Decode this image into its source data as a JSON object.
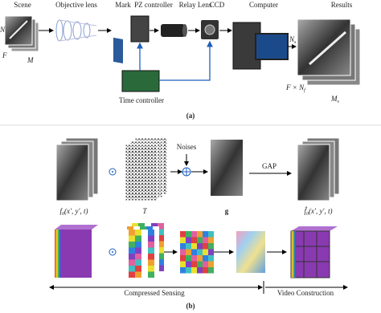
{
  "panel_a": {
    "labels": {
      "scene": "Scene",
      "objective_lens": "Objective lens",
      "mark": "Mark",
      "pz_controller": "PZ controller",
      "relay_lens": "Relay Lens",
      "ccd": "CCD",
      "computer": "Computer",
      "results": "Results",
      "time_controller": "Time controller"
    },
    "scene_axes": {
      "n": "N",
      "f": "F",
      "m": "M"
    },
    "result_axes": {
      "n": "N",
      "n_sub": "s",
      "f": "F × N",
      "f_sub": "f",
      "m": "M",
      "m_sub": "s"
    },
    "caption": "(a)"
  },
  "panel_b": {
    "noises": "Noises",
    "gap": "GAP",
    "f0": "f",
    "f0_sub": "0",
    "f0_args": "(x′, y′, t)",
    "t": "T",
    "g": "g",
    "f0_hat": "f̂",
    "f0_hat_sub": "0",
    "f0_hat_args": "(x′, y′, t)",
    "compressed_sensing": "Compressed Sensing",
    "video_construction": "Video Construction",
    "caption": "(b)"
  }
}
